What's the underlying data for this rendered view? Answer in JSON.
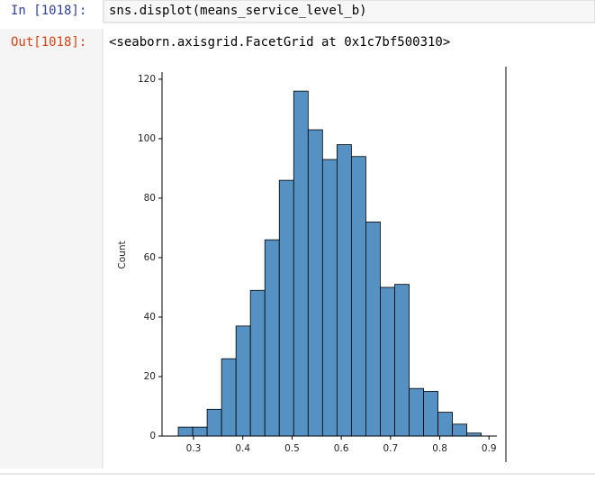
{
  "input_cell": {
    "prompt": "In [1018]:",
    "code": "sns.displot(means_service_level_b)"
  },
  "output_cell": {
    "prompt": "Out[1018]:",
    "text": "<seaborn.axisgrid.FacetGrid at 0x1c7bf500310>"
  },
  "chart_data": {
    "type": "histogram",
    "ylabel": "Count",
    "bins": [
      0.269,
      0.2983,
      0.3276,
      0.3569,
      0.3862,
      0.4155,
      0.4448,
      0.4741,
      0.5034,
      0.5327,
      0.562,
      0.5913,
      0.6206,
      0.6499,
      0.6792,
      0.7085,
      0.7378,
      0.7671,
      0.7964,
      0.8257,
      0.855,
      0.8843
    ],
    "values": [
      3,
      3,
      9,
      26,
      37,
      49,
      66,
      86,
      116,
      103,
      93,
      98,
      94,
      72,
      50,
      51,
      16,
      15,
      8,
      4,
      1
    ],
    "color": "#5592c3",
    "xlim": [
      0.236,
      0.916
    ],
    "ylim": [
      0,
      122.4
    ],
    "xticks": [
      0.3,
      0.4,
      0.5,
      0.6,
      0.7,
      0.8,
      0.9
    ],
    "yticks": [
      0,
      20,
      40,
      60,
      80,
      100,
      120
    ]
  }
}
